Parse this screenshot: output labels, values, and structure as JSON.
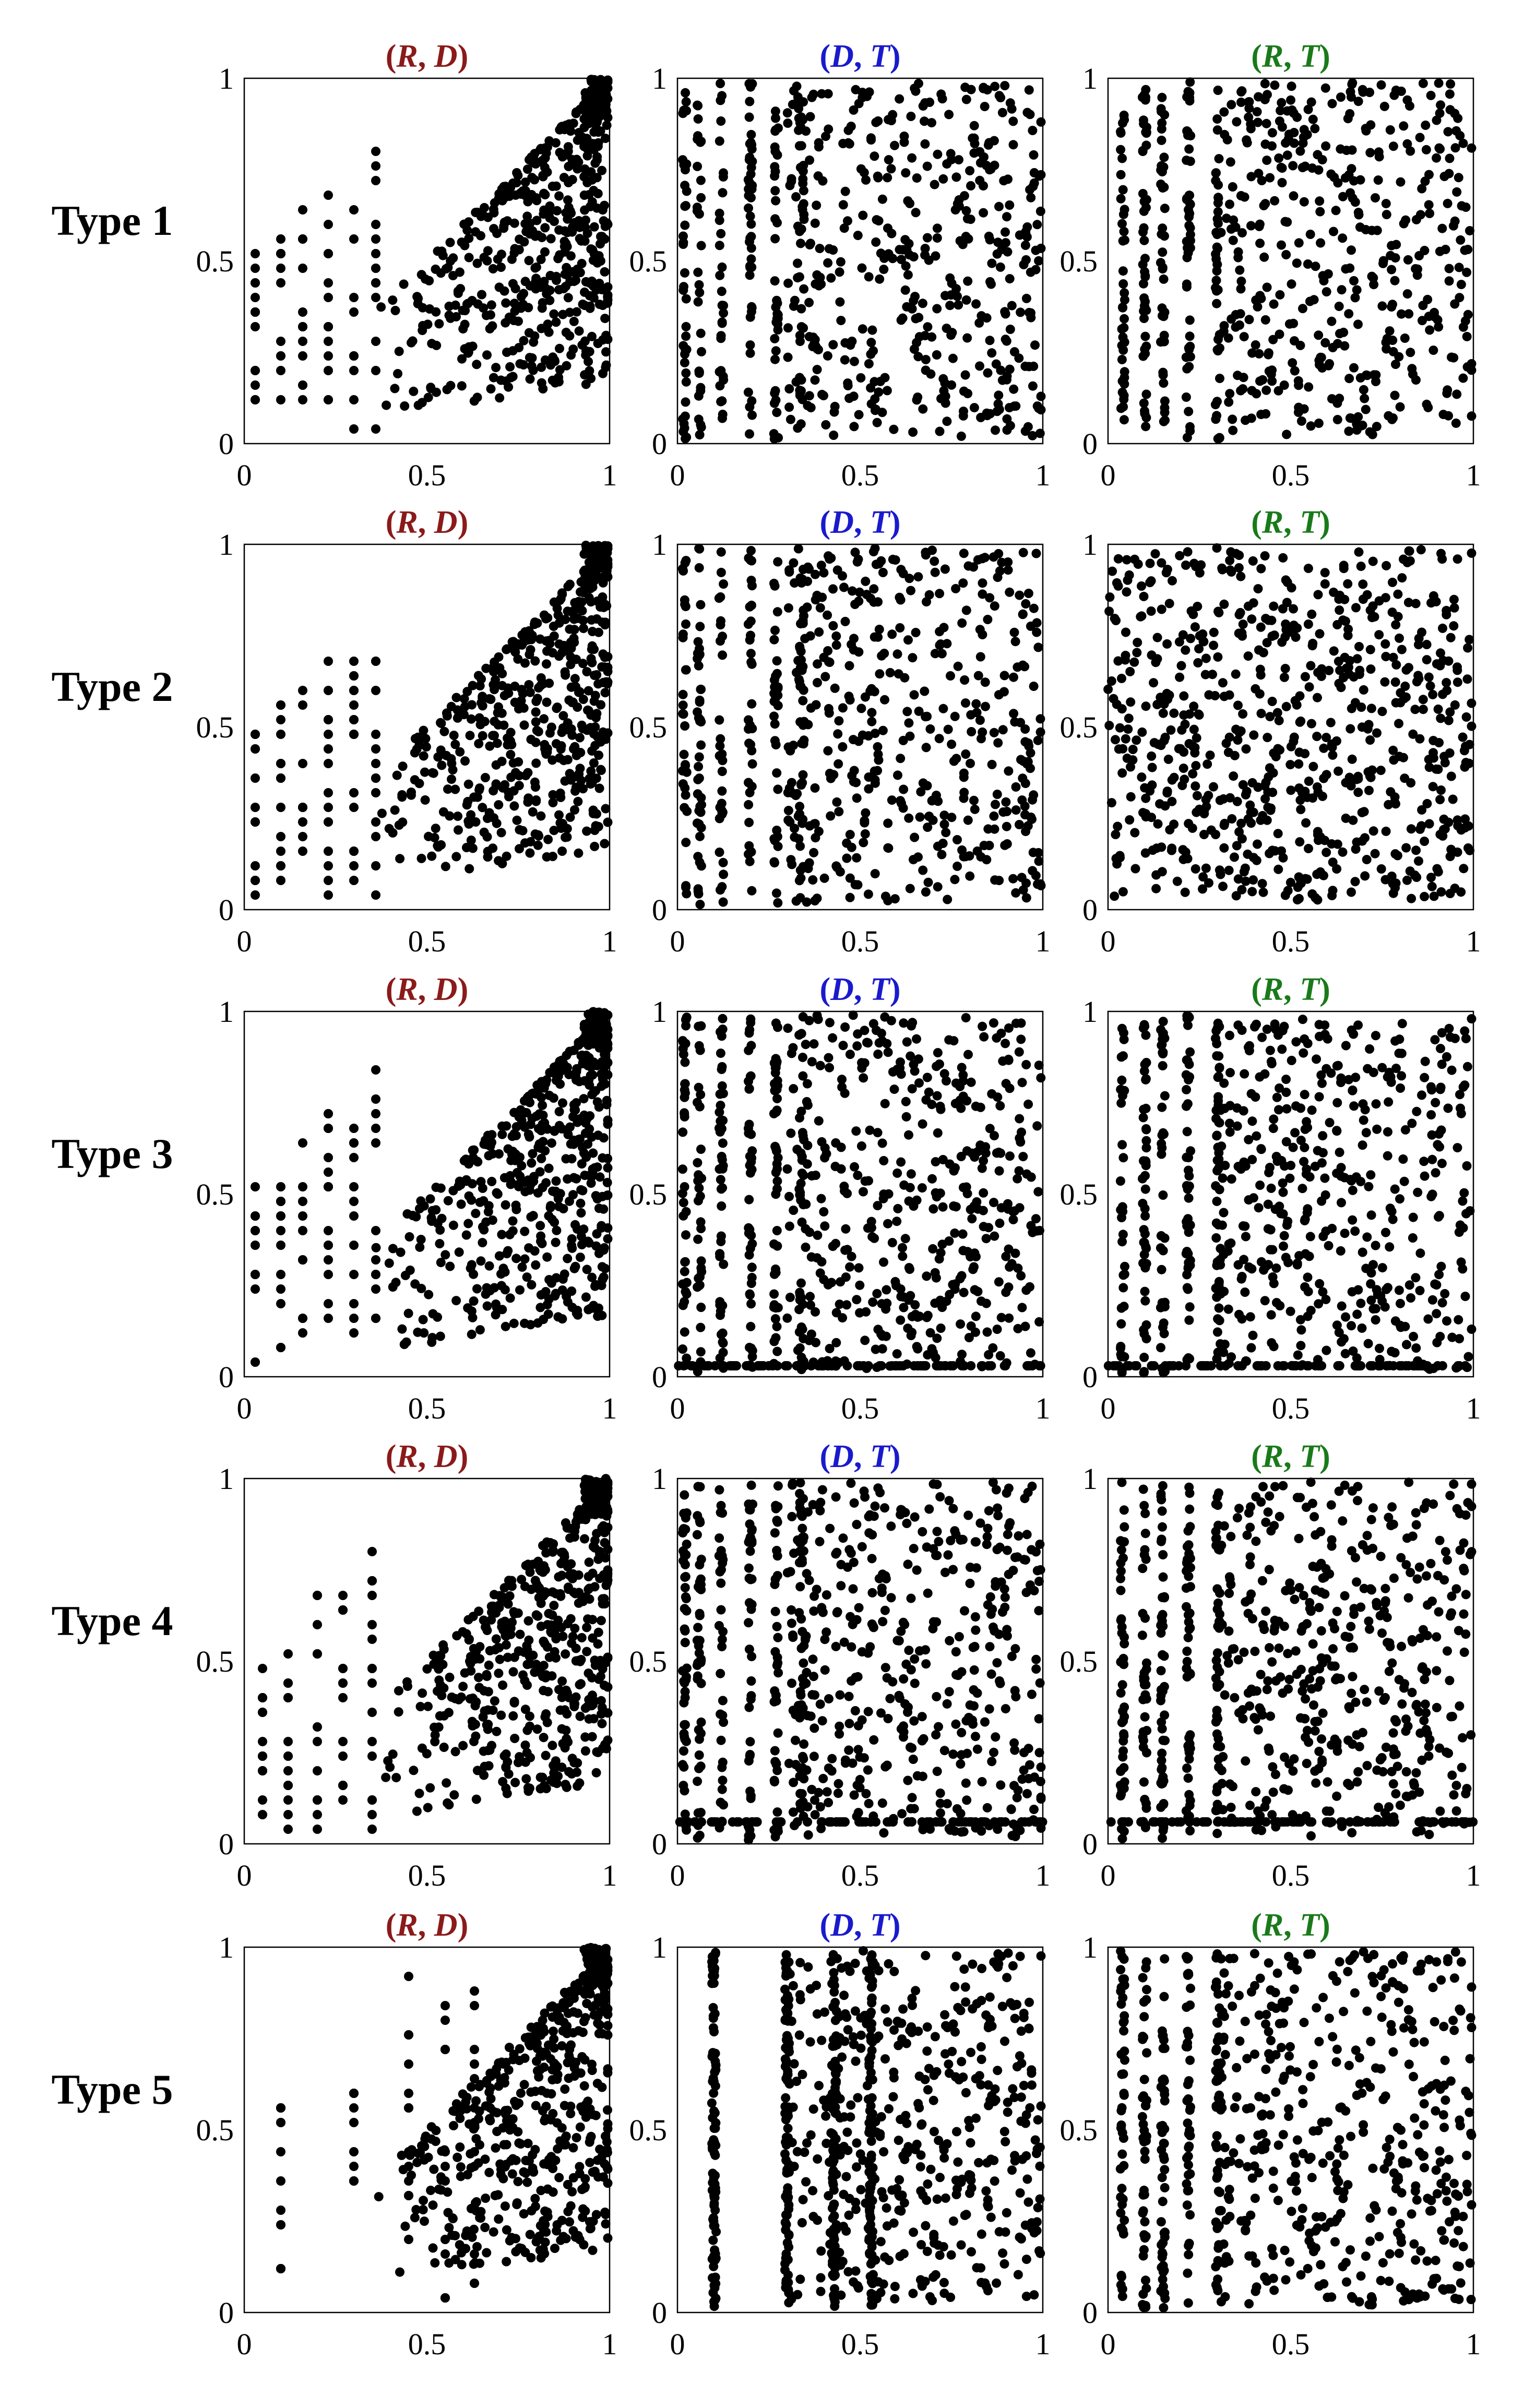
{
  "figure": {
    "rows": [
      "Type 1",
      "Type 2",
      "Type 3",
      "Type 4",
      "Type 5"
    ],
    "panel_titles": [
      {
        "parts": [
          "(",
          "R",
          ", ",
          "D",
          ")"
        ],
        "color": "#8b1a1a"
      },
      {
        "parts": [
          "(",
          "D",
          ", ",
          "T",
          ")"
        ],
        "color": "#1a1acd"
      },
      {
        "parts": [
          "(",
          "R",
          ", ",
          "T",
          ")"
        ],
        "color": "#1a7a1a"
      }
    ],
    "tick_labels": [
      "0",
      "0.5",
      "1"
    ]
  },
  "chart_data": [
    {
      "type": "scatter",
      "row": "Type 1",
      "title": "(R, D)",
      "xlim": [
        0,
        1
      ],
      "ylim": [
        0,
        1
      ],
      "pattern": "points lie on or below the diagonal, dense near (1, 1), vertical columns at low x"
    },
    {
      "type": "scatter",
      "row": "Type 1",
      "title": "(D, T)",
      "xlim": [
        0,
        1
      ],
      "ylim": [
        0,
        1
      ],
      "pattern": "dense vertical stripes at low x, scattered points toward x = 1"
    },
    {
      "type": "scatter",
      "row": "Type 1",
      "title": "(R, T)",
      "xlim": [
        0,
        1
      ],
      "ylim": [
        0,
        1
      ],
      "pattern": "vertical stripes at low x, scattered cloud over the rest"
    },
    {
      "type": "scatter",
      "row": "Type 2",
      "title": "(R, D)",
      "xlim": [
        0,
        1
      ],
      "ylim": [
        0,
        1
      ],
      "pattern": "points lie on or below the diagonal, dense near (1, 1), grid-like at low y"
    },
    {
      "type": "scatter",
      "row": "Type 2",
      "title": "(D, T)",
      "xlim": [
        0,
        1
      ],
      "ylim": [
        0,
        1
      ],
      "pattern": "vertical stripes at low x, scattered points elsewhere"
    },
    {
      "type": "scatter",
      "row": "Type 2",
      "title": "(R, T)",
      "xlim": [
        0,
        1
      ],
      "ylim": [
        0,
        1
      ],
      "pattern": "roughly uniform scatter over the unit square"
    },
    {
      "type": "scatter",
      "row": "Type 3",
      "title": "(R, D)",
      "xlim": [
        0,
        1
      ],
      "ylim": [
        0,
        1
      ],
      "pattern": "points lie on or below the diagonal, dense near (1, 1)"
    },
    {
      "type": "scatter",
      "row": "Type 3",
      "title": "(D, T)",
      "xlim": [
        0,
        1
      ],
      "ylim": [
        0,
        1
      ],
      "pattern": "vertical stripes at low x, dense horizontal band near y = 0"
    },
    {
      "type": "scatter",
      "row": "Type 3",
      "title": "(R, T)",
      "xlim": [
        0,
        1
      ],
      "ylim": [
        0,
        1
      ],
      "pattern": "vertical stripes at low x, scattered cloud, band near y = 0.07"
    },
    {
      "type": "scatter",
      "row": "Type 4",
      "title": "(R, D)",
      "xlim": [
        0,
        1
      ],
      "ylim": [
        0,
        1
      ],
      "pattern": "sparse columns at low x, dense cluster near (1, 1)"
    },
    {
      "type": "scatter",
      "row": "Type 4",
      "title": "(D, T)",
      "xlim": [
        0,
        1
      ],
      "ylim": [
        0,
        1
      ],
      "pattern": "dense vertical stripes at low x, scattered points toward x = 1"
    },
    {
      "type": "scatter",
      "row": "Type 4",
      "title": "(R, T)",
      "xlim": [
        0,
        1
      ],
      "ylim": [
        0,
        1
      ],
      "pattern": "vertical stripes at low x, scattered cloud over the rest"
    },
    {
      "type": "scatter",
      "row": "Type 5",
      "title": "(R, D)",
      "xlim": [
        0,
        1
      ],
      "ylim": [
        0,
        1
      ],
      "pattern": "few discrete columns at low x, dense cluster near (1, 1)"
    },
    {
      "type": "scatter",
      "row": "Type 5",
      "title": "(D, T)",
      "xlim": [
        0,
        1
      ],
      "ylim": [
        0,
        1
      ],
      "pattern": "solid vertical stripes at x ≈ 0.1, 0.3, 0.43, 0.53, scattered points toward x = 1"
    },
    {
      "type": "scatter",
      "row": "Type 5",
      "title": "(R, T)",
      "xlim": [
        0,
        1
      ],
      "ylim": [
        0,
        1
      ],
      "pattern": "vertical stripes at low x, scattered cloud over the rest"
    }
  ]
}
